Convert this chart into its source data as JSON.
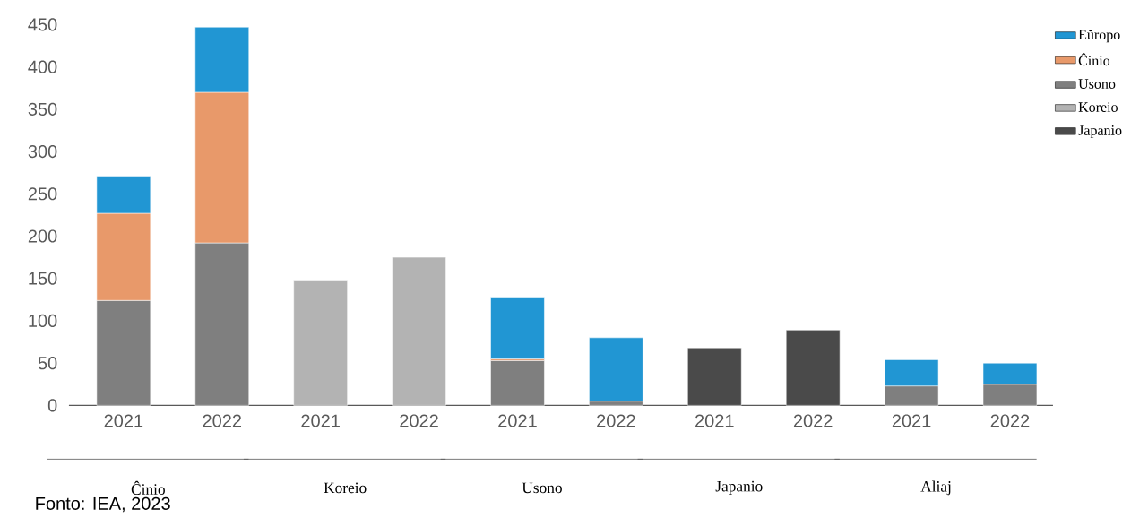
{
  "chart_data": {
    "type": "bar",
    "stacked": true,
    "categories": [
      "2021",
      "2022",
      "2021",
      "2022",
      "2021",
      "2022",
      "2021",
      "2022",
      "2021",
      "2022"
    ],
    "series": [
      {
        "name": "Japanio",
        "color": "#4a4a4a",
        "values": [
          null,
          null,
          null,
          null,
          null,
          null,
          68,
          89,
          null,
          null
        ]
      },
      {
        "name": "Koreio",
        "color": "#b3b3b3",
        "values": [
          null,
          null,
          148,
          175,
          null,
          null,
          null,
          null,
          null,
          null
        ]
      },
      {
        "name": "Usono",
        "color": "#7f7f7f",
        "values": [
          124,
          192,
          null,
          null,
          53,
          5,
          null,
          null,
          23,
          25
        ]
      },
      {
        "name": "Ĉinio",
        "color": "#e8996a",
        "values": [
          103,
          178,
          null,
          null,
          2,
          null,
          null,
          null,
          null,
          null
        ]
      },
      {
        "name": "Eŭropo",
        "color": "#2196d3",
        "values": [
          44,
          77,
          null,
          null,
          73,
          75,
          null,
          null,
          31,
          25
        ]
      }
    ],
    "ylim": [
      0,
      450
    ],
    "yticks": [
      0,
      50,
      100,
      150,
      200,
      250,
      300,
      350,
      400,
      450
    ],
    "legend": "top right",
    "annotations": [
      "Ĉinio",
      "Koreio",
      "Usono",
      "Japanio",
      "Aliaj",
      "Fonto: IEA, 2023"
    ]
  }
}
